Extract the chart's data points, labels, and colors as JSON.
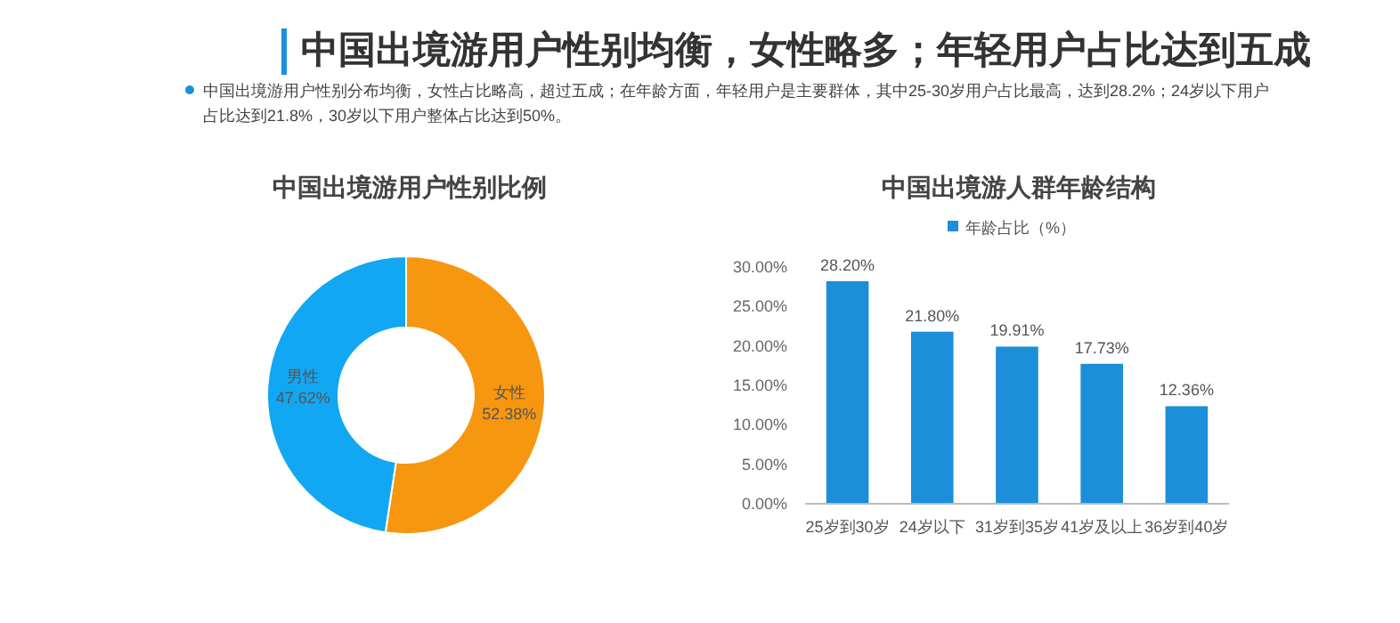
{
  "chart_data": [
    {
      "type": "other",
      "title": "中国出境游用户性别均衡，女性略多；年轻用户占比达到五成",
      "annotations": [
        "中国出境游用户性别分布均衡，女性占比略高，超过五成；在年龄方面，年轻用户是主要群体，其中25-30岁用户占比最高，达到28.2%；24岁以下用户占比达到21.8%，30岁以下用户整体占比达到50%。"
      ]
    },
    {
      "type": "donut",
      "title": "中国出境游用户性别比例",
      "categories": [
        "女性",
        "男性"
      ],
      "values": [
        52.38,
        47.62
      ],
      "value_labels": [
        "52.38%",
        "47.62%"
      ],
      "colors": [
        "#f7960f",
        "#12a7f2"
      ]
    },
    {
      "type": "bar",
      "title": "中国出境游人群年龄结构",
      "categories": [
        "25岁到30岁",
        "24岁以下",
        "31岁到35岁",
        "41岁及以上",
        "36岁到40岁"
      ],
      "series": [
        {
          "name": "年龄占比（%）",
          "color": "#1b8fd9",
          "values": [
            28.2,
            21.8,
            19.91,
            17.73,
            12.36
          ],
          "value_labels": [
            "28.20%",
            "21.80%",
            "19.91%",
            "17.73%",
            "12.36%"
          ]
        }
      ],
      "ylim": [
        0,
        30
      ],
      "yticks": [
        {
          "value": 0,
          "label": "0.00%"
        },
        {
          "value": 5,
          "label": "5.00%"
        },
        {
          "value": 10,
          "label": "10.00%"
        },
        {
          "value": 15,
          "label": "15.00%"
        },
        {
          "value": 20,
          "label": "20.00%"
        },
        {
          "value": 25,
          "label": "25.00%"
        },
        {
          "value": 30,
          "label": "30.00%"
        }
      ],
      "grid": false,
      "legend": "top"
    }
  ]
}
